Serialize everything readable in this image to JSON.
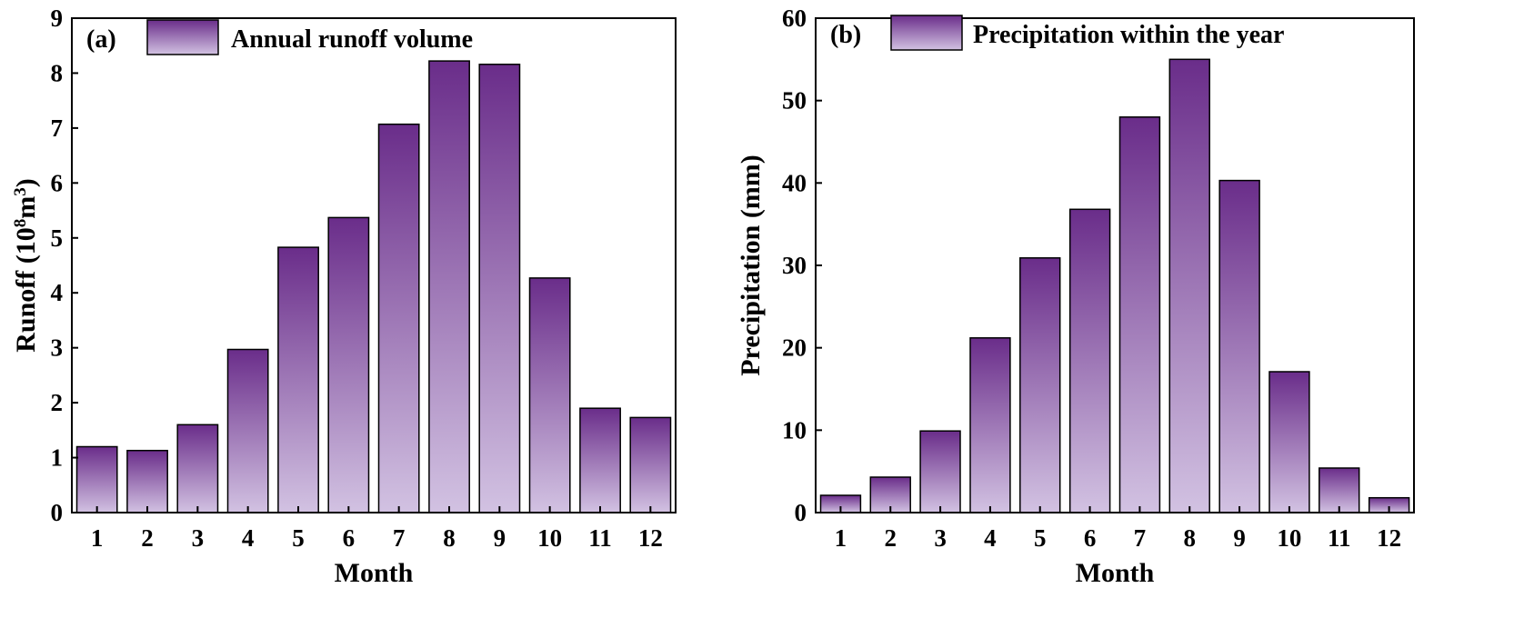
{
  "chart_data": [
    {
      "type": "bar",
      "panel_tag": "(a)",
      "categories": [
        "1",
        "2",
        "3",
        "4",
        "5",
        "6",
        "7",
        "8",
        "9",
        "10",
        "11",
        "12"
      ],
      "series": [
        {
          "name": "Annual runoff volume",
          "values": [
            1.2,
            1.13,
            1.6,
            2.97,
            4.83,
            5.37,
            7.07,
            8.22,
            8.16,
            4.27,
            1.9,
            1.73
          ]
        }
      ],
      "xlabel": "Month",
      "ylabel_prefix": "Runoff (10",
      "ylabel_sup1": "8",
      "ylabel_mid": "m",
      "ylabel_sup2": "3",
      "ylabel_suffix": ")",
      "ylim": [
        0,
        9
      ],
      "yticks": [
        0,
        1,
        2,
        3,
        4,
        5,
        6,
        7,
        8,
        9
      ],
      "legend_position": "top-left",
      "grid": false,
      "bar_color_top": "#6a2d8a",
      "bar_color_bottom": "#d2c2e2"
    },
    {
      "type": "bar",
      "panel_tag": "(b)",
      "categories": [
        "1",
        "2",
        "3",
        "4",
        "5",
        "6",
        "7",
        "8",
        "9",
        "10",
        "11",
        "12"
      ],
      "series": [
        {
          "name": "Precipitation within the year",
          "values": [
            2.1,
            4.3,
            9.9,
            21.2,
            30.9,
            36.8,
            48.0,
            55.0,
            40.3,
            17.1,
            5.4,
            1.8
          ]
        }
      ],
      "xlabel": "Month",
      "ylabel": "Precipitation (mm)",
      "ylim": [
        0,
        60
      ],
      "yticks": [
        0,
        10,
        20,
        30,
        40,
        50,
        60
      ],
      "legend_position": "top-left",
      "grid": false,
      "bar_color_top": "#6a2d8a",
      "bar_color_bottom": "#d2c2e2"
    }
  ]
}
